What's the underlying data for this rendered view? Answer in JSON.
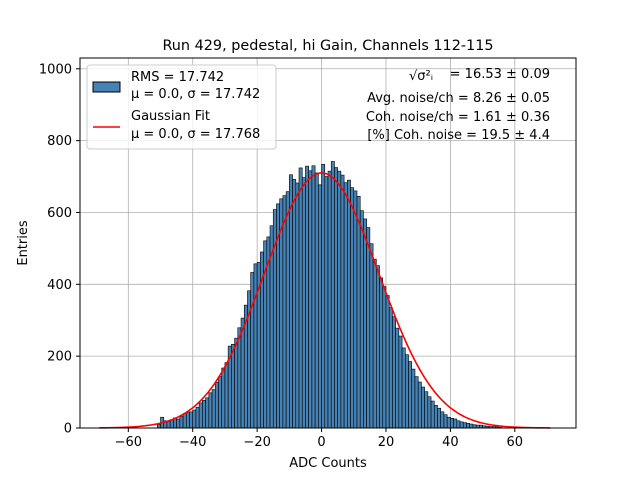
{
  "chart_data": {
    "type": "bar",
    "title": "Run 429, pedestal, hi Gain, Channels 112-115",
    "xlabel": "ADC Counts",
    "ylabel": "Entries",
    "xlim": [
      -75,
      79
    ],
    "ylim": [
      0,
      1030
    ],
    "grid": true,
    "xticks": [
      "−60",
      "−40",
      "−20",
      "0",
      "20",
      "40",
      "60"
    ],
    "xtick_values": [
      -60,
      -40,
      -20,
      0,
      20,
      40,
      60
    ],
    "yticks": [
      "0",
      "200",
      "400",
      "600",
      "800",
      "1000"
    ],
    "ytick_values": [
      0,
      200,
      400,
      600,
      800,
      1000
    ],
    "bin_width": 1,
    "bins_start": -51,
    "bin_values": [
      10,
      30,
      20,
      18,
      23,
      28,
      25,
      32,
      40,
      43,
      45,
      50,
      58,
      70,
      77,
      84,
      98,
      107,
      127,
      143,
      167,
      182,
      228,
      233,
      250,
      279,
      306,
      342,
      382,
      433,
      457,
      461,
      490,
      521,
      532,
      563,
      608,
      624,
      638,
      647,
      658,
      705,
      692,
      682,
      724,
      697,
      729,
      716,
      730,
      710,
      677,
      734,
      700,
      715,
      742,
      725,
      715,
      704,
      683,
      690,
      669,
      660,
      645,
      605,
      582,
      558,
      513,
      470,
      452,
      418,
      394,
      369,
      335,
      310,
      278,
      256,
      223,
      204,
      185,
      164,
      143,
      128,
      114,
      101,
      87,
      75,
      63,
      55,
      45,
      37,
      30,
      27,
      25,
      20,
      17,
      15,
      13,
      11,
      9,
      8,
      8,
      6,
      5,
      4,
      4,
      3,
      2
    ],
    "histogram_legend": {
      "line1": "RMS = 17.742",
      "line2": "μ = 0.0, σ = 17.742"
    },
    "gaussian_fit": {
      "mu": 0.0,
      "sigma": 17.768,
      "amplitude": 710,
      "x_range": [
        -69,
        71
      ],
      "color": "#ff0000",
      "legend_line1": "Gaussian Fit",
      "legend_line2": "μ = 0.0, σ = 17.768"
    },
    "bar_color": "#4682b4",
    "bar_edge_color": "#000000",
    "annotations": [
      {
        "label": "√σ²ᵢ",
        "value": "= 16.53 ± 0.09"
      },
      {
        "text": "Avg. noise/ch = 8.26 ± 0.05"
      },
      {
        "text": "Coh. noise/ch = 1.61 ± 0.36"
      },
      {
        "text": "[%] Coh. noise = 19.5 ± 4.4"
      }
    ]
  }
}
